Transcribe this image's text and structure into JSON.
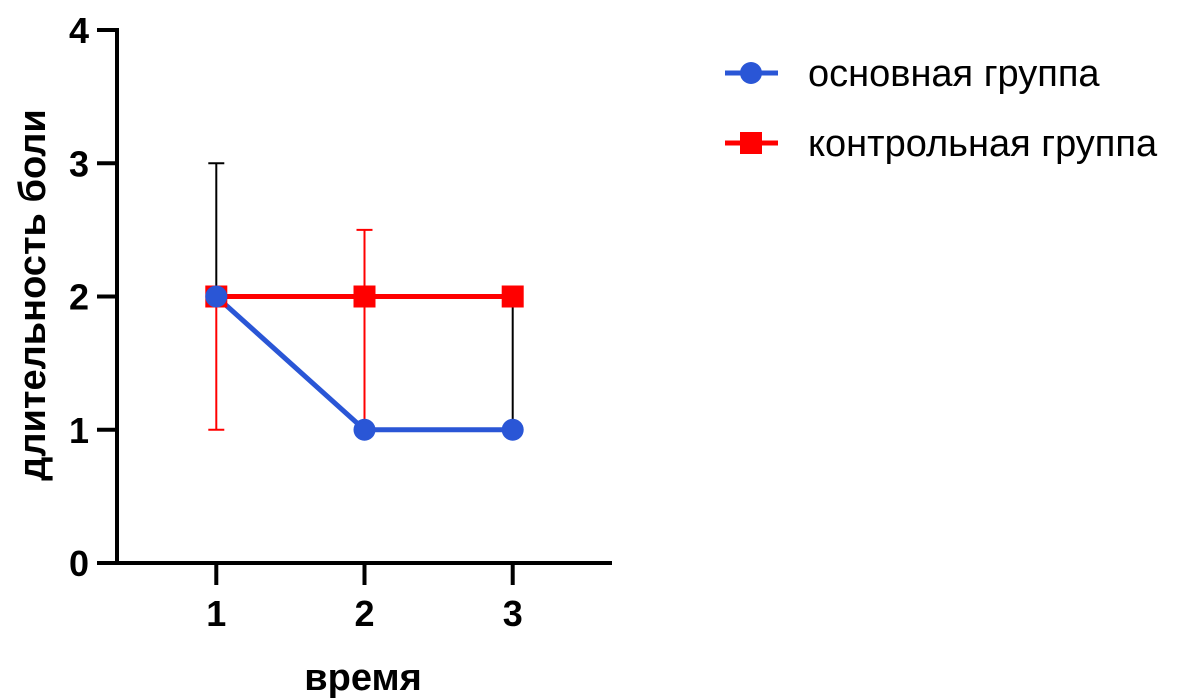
{
  "chart_data": {
    "type": "line",
    "x": [
      1,
      2,
      3
    ],
    "xlabel": "время",
    "ylabel": "длительность боли",
    "xlim": [
      0.33,
      3.67
    ],
    "ylim": [
      0,
      4
    ],
    "xticks": [
      "1",
      "2",
      "3"
    ],
    "yticks": [
      "0",
      "1",
      "2",
      "3",
      "4"
    ],
    "grid": false,
    "legend": "top-right",
    "series": [
      {
        "name": "основная группа",
        "color": "#2a56d6",
        "marker": "circle",
        "values": [
          2,
          1,
          1
        ],
        "error_upper": [
          3,
          1,
          2
        ],
        "error_lower": [
          2,
          1,
          1
        ],
        "error_color": "#000000"
      },
      {
        "name": "контрольная группа",
        "color": "#ff0000",
        "marker": "square",
        "values": [
          2,
          2,
          2
        ],
        "error_upper": [
          2,
          2.5,
          2
        ],
        "error_lower": [
          1,
          1,
          2
        ],
        "error_color": "#ff0000"
      }
    ]
  }
}
